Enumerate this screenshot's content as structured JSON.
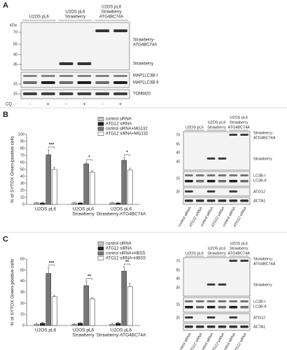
{
  "panel_a": {
    "label": "A",
    "unit": "kDa",
    "headers": [
      [
        "U2OS pL6"
      ],
      [
        "U2OS pL6",
        "Strawberry"
      ],
      [
        "U2OS pL6",
        "Strawberry",
        "ATG4BC74A"
      ]
    ],
    "markers": [
      "70",
      "55",
      "40",
      "35",
      "15",
      "15"
    ],
    "bands": [
      [
        "Strawberry-",
        "ATG4BC74A"
      ],
      [
        "Strawberry"
      ],
      [
        "MAP1LC3B-I"
      ],
      [
        "MAP1LC3B-II"
      ],
      [
        "TOMM20"
      ]
    ],
    "treatment": "CQ",
    "lanes": [
      "-",
      "+",
      "-",
      "+",
      "-",
      "+"
    ]
  },
  "panel_b": {
    "label": "B",
    "blot": {
      "headers": [
        [
          "U2OS pL6"
        ],
        [
          "U2OS pL6",
          "Strawberry"
        ],
        [
          "U2OS pL6",
          "Strawberry",
          "ATG4BC74A"
        ]
      ],
      "markers": [
        "70",
        "55",
        "40",
        "35",
        "15",
        "25"
      ],
      "bands": [
        [
          "Strawberry-",
          "ATG4BC74A"
        ],
        [
          "Strawberry"
        ],
        [
          "LC3B-I"
        ],
        [
          "LC3B-II"
        ],
        [
          "ATG12"
        ],
        [
          "ACTA1"
        ]
      ],
      "lanes": [
        "control siRNA",
        "ATG12 siRNA",
        "control siRNA",
        "ATG12 siRNA",
        "control siRNA",
        "ATG12 siRNA"
      ]
    }
  },
  "panel_c": {
    "label": "C",
    "blot": {
      "headers": [
        [
          "U2OS pL6"
        ],
        [
          "U2OS pL6",
          "Strawberry"
        ],
        [
          "U2OS pL6",
          "Strawberry",
          "ATG4BC74A"
        ]
      ],
      "markers": [
        "70",
        "55",
        "40",
        "35",
        "15",
        "25"
      ],
      "bands": [
        [
          "Strawberry-",
          "ATG4BC74A"
        ],
        [
          "Strawberry"
        ],
        [
          "LC3B-I"
        ],
        [
          "LC3B-II"
        ],
        [
          "ATG12"
        ],
        [
          "ACTA1"
        ]
      ],
      "lanes": [
        "control siRNA",
        "ATG12 siRNA",
        "control siRNA",
        "ATG12 siRNA",
        "control siRNA",
        "ATG12 siRNA"
      ]
    }
  },
  "chart_data": [
    {
      "type": "bar",
      "ylabel": "% of SYTOX Green-positive cells",
      "categories": [
        [
          "U2OS pL6"
        ],
        [
          "U2OS pL6",
          "Strawberry"
        ],
        [
          "U2OS pL6",
          "Strawberry-ATG4BC74A"
        ]
      ],
      "series": [
        {
          "name": "control siRNA",
          "color": "#c8c8c8",
          "values": [
            2,
            2,
            2
          ],
          "errors": [
            1,
            1,
            1
          ]
        },
        {
          "name": "ATG12 siRNA",
          "color": "#222222",
          "values": [
            2,
            2,
            2
          ],
          "errors": [
            1,
            1,
            1
          ]
        },
        {
          "name": "control siRNA+MG132",
          "color": "#777777",
          "values": [
            71,
            58,
            63
          ],
          "errors": [
            7,
            2,
            4
          ]
        },
        {
          "name": "ATG12 siRNA+MG132",
          "color": "#ffffff",
          "values": [
            50,
            46,
            49
          ],
          "errors": [
            3,
            2,
            3
          ]
        }
      ],
      "significance": [
        "***",
        "*",
        "*"
      ],
      "ylim": [
        0,
        100
      ],
      "yticks": [
        0,
        10,
        20,
        30,
        40,
        50,
        60,
        70,
        80,
        90,
        100
      ]
    },
    {
      "type": "bar",
      "ylabel": "% of SYTOX Green-positive cells",
      "categories": [
        [
          "U2OS pL6"
        ],
        [
          "U2OS pL6",
          "Strawberry"
        ],
        [
          "U2OS pL6",
          "Strawberry-ATG4BC74A"
        ]
      ],
      "series": [
        {
          "name": "control siRNA",
          "color": "#c8c8c8",
          "values": [
            1,
            1,
            1
          ],
          "errors": [
            1,
            0.5,
            1
          ]
        },
        {
          "name": "ATG12 siRNA",
          "color": "#222222",
          "values": [
            2,
            2,
            2
          ],
          "errors": [
            1,
            1,
            1
          ]
        },
        {
          "name": "control siRNA+HBSS",
          "color": "#777777",
          "values": [
            47,
            36,
            49
          ],
          "errors": [
            5,
            4,
            4
          ]
        },
        {
          "name": "ATG12 siRNA+HBSS",
          "color": "#ffffff",
          "values": [
            26,
            24,
            35
          ],
          "errors": [
            1,
            1,
            3
          ]
        }
      ],
      "significance": [
        "***",
        "**",
        "**"
      ],
      "ylim": [
        0,
        60
      ],
      "yticks": [
        0,
        10,
        20,
        30,
        40,
        50,
        60
      ]
    }
  ]
}
